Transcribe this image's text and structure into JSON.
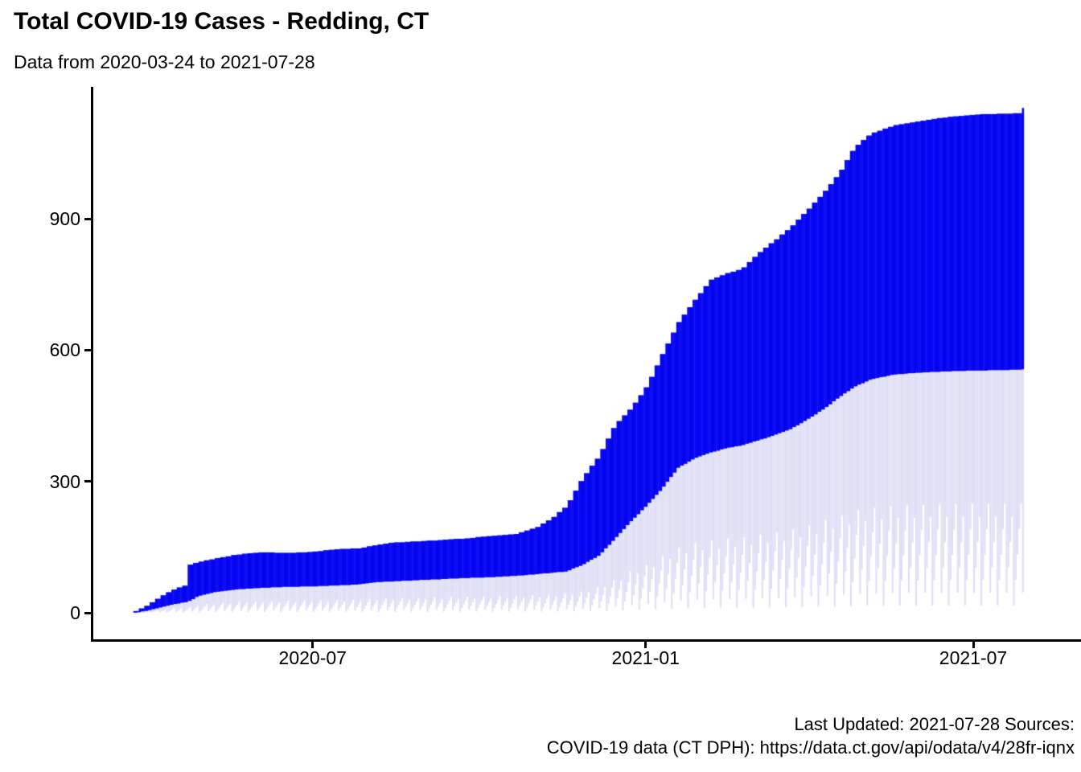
{
  "header": {
    "title": "Total COVID-19 Cases - Redding, CT",
    "subtitle": "Data from 2020-03-24 to 2021-07-28"
  },
  "footer": {
    "caption_line1": "Last Updated: 2021-07-28  Sources:",
    "caption_line2": "COVID-19 data (CT DPH): https://data.ct.gov/api/odata/v4/28fr-iqnx"
  },
  "chart_data": {
    "type": "bar",
    "title": "Total COVID-19 Cases - Redding, CT",
    "subtitle": "Data from 2020-03-24 to 2021-07-28",
    "xlabel": "",
    "ylabel": "",
    "date_start": "2020-03-24",
    "date_end": "2021-07-28",
    "n_days": 492,
    "ylim": [
      0,
      1160
    ],
    "grid": "off",
    "legend": "none",
    "y_ticks": [
      {
        "label": "0",
        "value": 0
      },
      {
        "label": "300",
        "value": 300
      },
      {
        "label": "600",
        "value": 600
      },
      {
        "label": "900",
        "value": 900
      }
    ],
    "x_ticks": [
      {
        "label": "2020-07",
        "day": 99
      },
      {
        "label": "2021-01",
        "day": 283
      },
      {
        "label": "2021-07",
        "day": 464
      }
    ],
    "colors": {
      "bar_upper_dark_blue": "#0404F2",
      "bar_lower_light_lavender": "#DEDEF6",
      "axis": "#000000",
      "background": "#FFFFFF"
    },
    "series": [
      {
        "name": "upper-dark-blue-cumulative-total",
        "description": "Top edge of dark blue stacked bars; breakpoints as [day_since_2020-03-24, value], stepped daily",
        "breakpoints": [
          [
            0,
            4
          ],
          [
            3,
            10
          ],
          [
            6,
            16
          ],
          [
            9,
            24
          ],
          [
            13,
            34
          ],
          [
            17,
            45
          ],
          [
            21,
            53
          ],
          [
            25,
            60
          ],
          [
            29,
            64
          ],
          [
            30,
            110
          ],
          [
            35,
            116
          ],
          [
            44,
            124
          ],
          [
            53,
            131
          ],
          [
            62,
            136
          ],
          [
            71,
            138
          ],
          [
            84,
            137
          ],
          [
            97,
            139
          ],
          [
            110,
            145
          ],
          [
            123,
            147
          ],
          [
            131,
            153
          ],
          [
            140,
            160
          ],
          [
            160,
            164
          ],
          [
            182,
            170
          ],
          [
            196,
            175
          ],
          [
            210,
            180
          ],
          [
            222,
            196
          ],
          [
            230,
            216
          ],
          [
            238,
            243
          ],
          [
            247,
            308
          ],
          [
            256,
            358
          ],
          [
            265,
            430
          ],
          [
            274,
            468
          ],
          [
            283,
            521
          ],
          [
            291,
            591
          ],
          [
            300,
            664
          ],
          [
            309,
            715
          ],
          [
            318,
            761
          ],
          [
            327,
            776
          ],
          [
            335,
            785
          ],
          [
            344,
            821
          ],
          [
            353,
            850
          ],
          [
            362,
            881
          ],
          [
            371,
            919
          ],
          [
            380,
            959
          ],
          [
            389,
            1005
          ],
          [
            397,
            1062
          ],
          [
            406,
            1094
          ],
          [
            419,
            1113
          ],
          [
            433,
            1123
          ],
          [
            442,
            1129
          ],
          [
            455,
            1135
          ],
          [
            464,
            1138
          ],
          [
            478,
            1140
          ],
          [
            490,
            1141
          ],
          [
            491,
            1153
          ]
        ]
      },
      {
        "name": "lower-light-lavender-cumulative",
        "description": "Top edge of light lavender bars (boundary between light and dark); breakpoints as [day, value]",
        "breakpoints": [
          [
            0,
            2
          ],
          [
            3,
            4
          ],
          [
            6,
            6
          ],
          [
            9,
            9
          ],
          [
            13,
            13
          ],
          [
            17,
            17
          ],
          [
            21,
            21
          ],
          [
            25,
            24
          ],
          [
            29,
            27
          ],
          [
            30,
            29
          ],
          [
            35,
            40
          ],
          [
            44,
            49
          ],
          [
            53,
            54
          ],
          [
            62,
            57
          ],
          [
            71,
            59
          ],
          [
            84,
            61
          ],
          [
            97,
            62
          ],
          [
            110,
            64
          ],
          [
            123,
            66
          ],
          [
            131,
            71
          ],
          [
            140,
            73
          ],
          [
            160,
            77
          ],
          [
            182,
            81
          ],
          [
            196,
            83
          ],
          [
            210,
            86
          ],
          [
            222,
            90
          ],
          [
            230,
            93
          ],
          [
            238,
            96
          ],
          [
            247,
            111
          ],
          [
            256,
            132
          ],
          [
            265,
            170
          ],
          [
            274,
            211
          ],
          [
            283,
            248
          ],
          [
            291,
            285
          ],
          [
            300,
            333
          ],
          [
            309,
            354
          ],
          [
            318,
            368
          ],
          [
            327,
            378
          ],
          [
            335,
            384
          ],
          [
            344,
            395
          ],
          [
            353,
            407
          ],
          [
            362,
            421
          ],
          [
            371,
            442
          ],
          [
            380,
            466
          ],
          [
            389,
            494
          ],
          [
            397,
            517
          ],
          [
            406,
            534
          ],
          [
            419,
            546
          ],
          [
            433,
            550
          ],
          [
            442,
            552
          ],
          [
            455,
            554
          ],
          [
            464,
            555
          ],
          [
            478,
            556
          ],
          [
            490,
            557
          ],
          [
            491,
            558
          ]
        ]
      }
    ],
    "fringe": {
      "description": "Light bars start above zero with a sawtooth baseline, producing white notches/stripes under the lavender band",
      "period_days": 4.5,
      "min_fraction_of_lower": 0.03,
      "max_fraction_of_lower": 0.5
    }
  }
}
